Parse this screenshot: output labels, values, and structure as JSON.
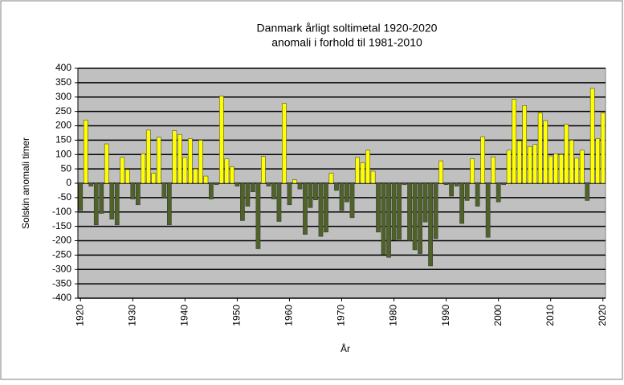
{
  "chart_data": {
    "type": "bar",
    "title": "Danmark årligt soltimetal 1920-2020",
    "subtitle": "anomali i forhold til 1981-2010",
    "y_label": "Solskin  anomali timer",
    "x_label": "År",
    "x": [
      1920,
      1921,
      1922,
      1923,
      1924,
      1925,
      1926,
      1927,
      1928,
      1929,
      1930,
      1931,
      1932,
      1933,
      1934,
      1935,
      1936,
      1937,
      1938,
      1939,
      1940,
      1941,
      1942,
      1943,
      1944,
      1945,
      1946,
      1947,
      1948,
      1949,
      1950,
      1951,
      1952,
      1953,
      1954,
      1955,
      1956,
      1957,
      1958,
      1959,
      1960,
      1961,
      1962,
      1963,
      1964,
      1965,
      1966,
      1967,
      1968,
      1969,
      1970,
      1971,
      1972,
      1973,
      1974,
      1975,
      1976,
      1977,
      1978,
      1979,
      1980,
      1981,
      1982,
      1983,
      1984,
      1985,
      1986,
      1987,
      1988,
      1989,
      1990,
      1991,
      1992,
      1993,
      1994,
      1995,
      1996,
      1997,
      1998,
      1999,
      2000,
      2001,
      2002,
      2003,
      2004,
      2005,
      2006,
      2007,
      2008,
      2009,
      2010,
      2011,
      2012,
      2013,
      2014,
      2015,
      2016,
      2017,
      2018,
      2019,
      2020
    ],
    "values": [
      -95,
      220,
      -10,
      -145,
      -105,
      137,
      -125,
      -145,
      90,
      48,
      -55,
      -75,
      103,
      185,
      35,
      160,
      -50,
      -145,
      183,
      170,
      90,
      155,
      50,
      150,
      25,
      -55,
      -5,
      303,
      85,
      58,
      -10,
      -130,
      -80,
      -30,
      -228,
      93,
      -10,
      -55,
      -133,
      278,
      -75,
      12,
      -20,
      -178,
      -85,
      -58,
      -185,
      -170,
      35,
      -25,
      -95,
      -65,
      -120,
      90,
      72,
      115,
      42,
      -170,
      -248,
      -258,
      -198,
      -195,
      -5,
      -200,
      -232,
      -245,
      -135,
      -288,
      -193,
      78,
      -5,
      -45,
      -10,
      -140,
      -60,
      85,
      -80,
      162,
      -188,
      92,
      -65,
      -5,
      115,
      292,
      148,
      270,
      128,
      135,
      245,
      218,
      95,
      103,
      100,
      205,
      150,
      88,
      115,
      -60,
      330,
      155,
      245
    ],
    "color_positive": "#ffff00",
    "color_negative": "#4f6228",
    "xlim": [
      1919.5,
      2020.5
    ],
    "xticks": [
      1920,
      1930,
      1940,
      1950,
      1960,
      1970,
      1980,
      1990,
      2000,
      2010,
      2020
    ],
    "ylim": [
      -400,
      400
    ],
    "yticks": [
      -400,
      -350,
      -300,
      -250,
      -200,
      -150,
      -100,
      -50,
      0,
      50,
      100,
      150,
      200,
      250,
      300,
      350,
      400
    ],
    "grid": true
  }
}
